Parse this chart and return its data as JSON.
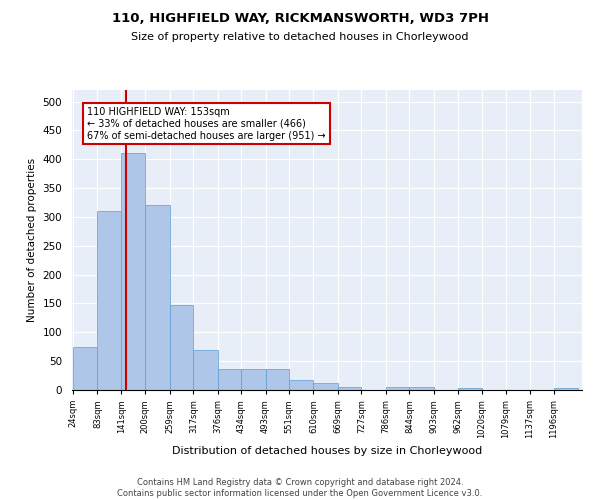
{
  "title1": "110, HIGHFIELD WAY, RICKMANSWORTH, WD3 7PH",
  "title2": "Size of property relative to detached houses in Chorleywood",
  "xlabel": "Distribution of detached houses by size in Chorleywood",
  "ylabel": "Number of detached properties",
  "footer1": "Contains HM Land Registry data © Crown copyright and database right 2024.",
  "footer2": "Contains public sector information licensed under the Open Government Licence v3.0.",
  "annotation_line1": "110 HIGHFIELD WAY: 153sqm",
  "annotation_line2": "← 33% of detached houses are smaller (466)",
  "annotation_line3": "67% of semi-detached houses are larger (951) →",
  "property_size": 153,
  "bin_edges": [
    24,
    83,
    141,
    200,
    259,
    317,
    376,
    434,
    493,
    551,
    610,
    669,
    727,
    786,
    844,
    903,
    962,
    1020,
    1079,
    1137,
    1196,
    1255
  ],
  "bar_heights": [
    75,
    310,
    410,
    320,
    148,
    70,
    36,
    36,
    36,
    18,
    12,
    5,
    0,
    6,
    6,
    0,
    3,
    0,
    0,
    0,
    3
  ],
  "bar_color": "#aec6e8",
  "bar_edge_color": "#5a9fd4",
  "vline_color": "#cc0000",
  "annotation_box_color": "#cc0000",
  "background_color": "#e8eef7",
  "ylim": [
    0,
    520
  ],
  "yticks": [
    0,
    50,
    100,
    150,
    200,
    250,
    300,
    350,
    400,
    450,
    500
  ]
}
